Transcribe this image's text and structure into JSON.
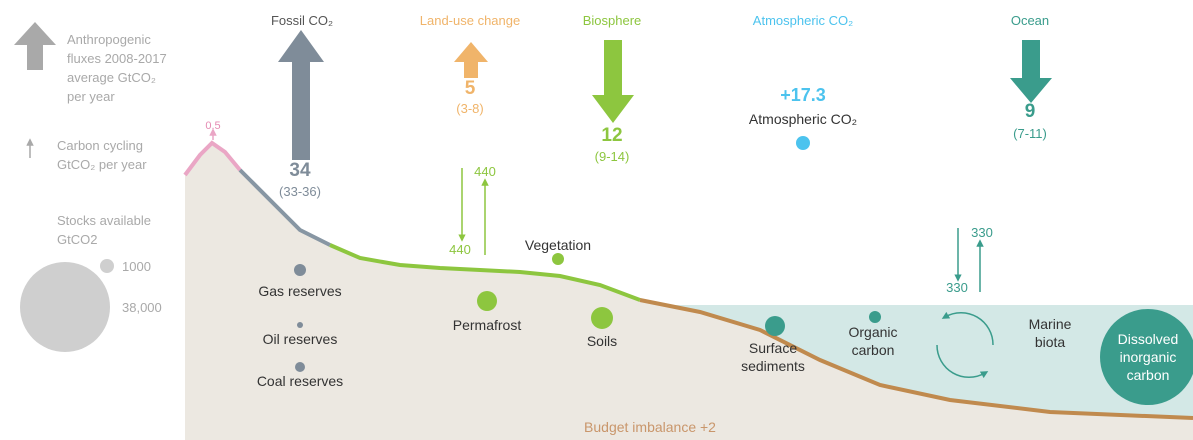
{
  "legend": {
    "fluxes": "Anthropogenic fluxes 2008-2017 average GtCO₂ per year",
    "cycling": "Carbon cycling GtCO₂ per year",
    "stocks": "Stocks available GtCO2",
    "stock_small": "1000",
    "stock_large": "38,000"
  },
  "fluxes": [
    {
      "label": "Fossil CO₂",
      "value": "34",
      "range": "(33-36)"
    },
    {
      "label": "Land-use change",
      "value": "5",
      "range": "(3-8)"
    },
    {
      "label": "Biosphere",
      "value": "12",
      "range": "(9-14)"
    },
    {
      "label": "Ocean",
      "value": "9",
      "range": "(7-11)"
    }
  ],
  "atmosphere": {
    "header": "Atmospheric CO₂",
    "value": "+17.3",
    "label": "Atmospheric CO₂"
  },
  "cycling": {
    "peak": "0.5",
    "land_down": "440",
    "land_up": "440",
    "ocean_down": "330",
    "ocean_up": "330"
  },
  "stocks": [
    "Gas reserves",
    "Oil reserves",
    "Coal reserves",
    "Permafrost",
    "Vegetation",
    "Soils",
    "Surface sediments",
    "Organic carbon",
    "Marine biota",
    "Dissolved inorganic carbon"
  ],
  "budget_imbalance": "Budget imbalance +2"
}
